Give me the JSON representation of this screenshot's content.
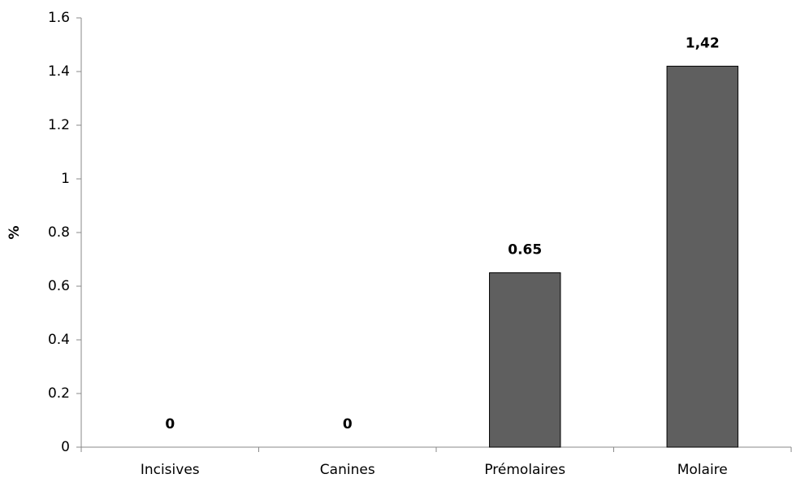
{
  "chart_data": {
    "type": "bar",
    "y_label": "%",
    "categories": [
      "Incisives",
      "Canines",
      "Prémolaires",
      "Molaire"
    ],
    "values": [
      0,
      0,
      0.65,
      1.42
    ],
    "value_labels": [
      "0",
      "0",
      "0.65",
      "1,42"
    ],
    "color": "#5f5f5f",
    "ylim": [
      0,
      1.6
    ],
    "yticks": [
      0,
      0.2,
      0.4,
      0.6,
      0.8,
      1,
      1.2,
      1.4,
      1.6
    ],
    "grid": false
  }
}
